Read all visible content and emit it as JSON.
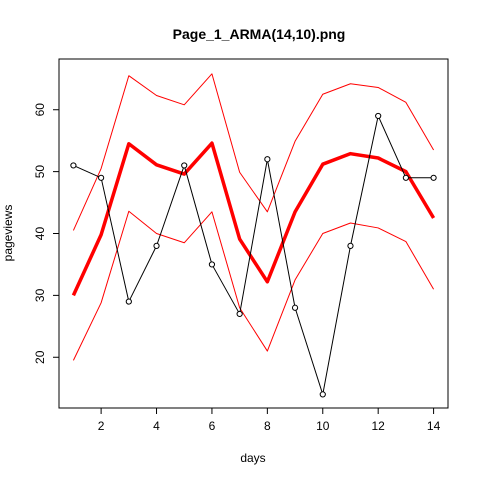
{
  "chart_data": {
    "type": "line",
    "title": "Page_1_ARMA(14,10).png",
    "xlabel": "days",
    "ylabel": "pageviews",
    "xlim": [
      0.48,
      14.52
    ],
    "ylim": [
      11.8,
      68.2
    ],
    "x_ticks": [
      2,
      4,
      6,
      8,
      10,
      12,
      14
    ],
    "y_ticks": [
      20,
      30,
      40,
      50,
      60
    ],
    "grid": false,
    "legend": "none",
    "x": [
      1,
      2,
      3,
      4,
      5,
      6,
      7,
      8,
      9,
      10,
      11,
      12,
      13,
      14
    ],
    "series": [
      {
        "color": "#ff0000",
        "style": "thin",
        "values": [
          40.5,
          50.5,
          65.5,
          62.3,
          60.8,
          65.8,
          49.9,
          43.5,
          54.9,
          62.5,
          64.2,
          63.6,
          61.2,
          53.5
        ]
      },
      {
        "color": "#ff0000",
        "style": "thick",
        "values": [
          30.0,
          39.8,
          54.5,
          51.1,
          49.6,
          54.6,
          39.1,
          32.2,
          43.5,
          51.2,
          52.9,
          52.2,
          50.0,
          42.5
        ]
      },
      {
        "color": "#ff0000",
        "style": "thin",
        "values": [
          19.5,
          28.8,
          43.6,
          40.0,
          38.5,
          43.5,
          28.0,
          21.0,
          32.5,
          40.0,
          41.7,
          40.9,
          38.7,
          31.0
        ]
      },
      {
        "color": "#000000",
        "style": "points",
        "values": [
          51,
          49,
          29,
          38,
          51,
          35,
          27,
          52,
          28,
          14,
          38,
          59,
          49,
          49
        ]
      }
    ]
  }
}
